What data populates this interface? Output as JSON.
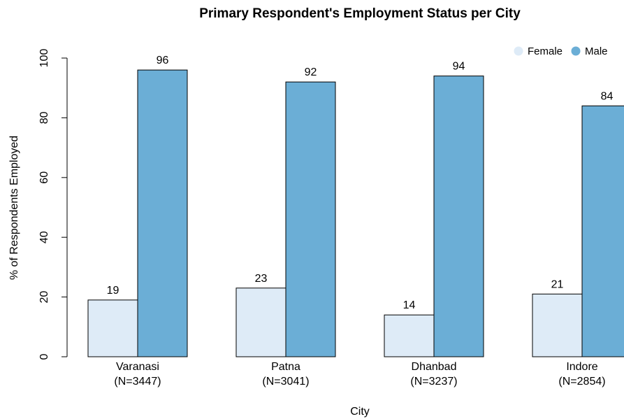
{
  "chart_data": {
    "type": "bar",
    "title": "Primary Respondent's Employment Status per City",
    "xlabel": "City",
    "ylabel": "% of Respondents Employed",
    "ylim": [
      0,
      100
    ],
    "yticks": [
      0,
      20,
      40,
      60,
      80,
      100
    ],
    "categories": [
      "Varanasi",
      "Patna",
      "Dhanbad",
      "Indore"
    ],
    "category_sublabels": [
      "(N=3447)",
      "(N=3041)",
      "(N=3237)",
      "(N=2854)"
    ],
    "series": [
      {
        "name": "Female",
        "color": "#deebf7",
        "values": [
          19,
          23,
          14,
          21
        ]
      },
      {
        "name": "Male",
        "color": "#6baed6",
        "values": [
          96,
          92,
          94,
          84
        ]
      }
    ],
    "grid": false,
    "legend": "top-right"
  }
}
